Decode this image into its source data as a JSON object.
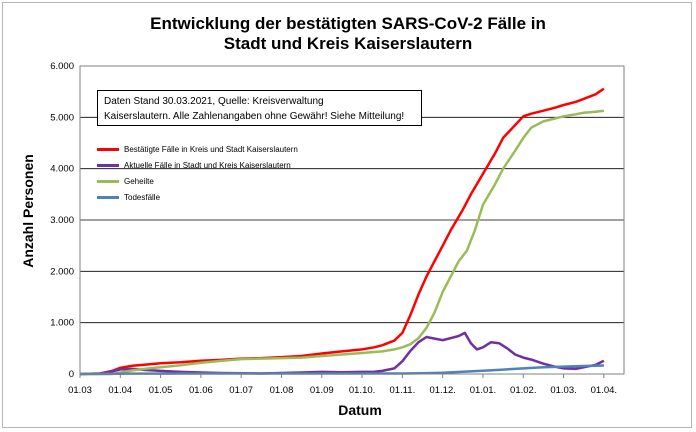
{
  "chart_data": {
    "type": "line",
    "title_line1": "Entwicklung der bestätigten SARS-CoV-2 Fälle in",
    "title_line2": "Stadt und Kreis Kaiserslautern",
    "xlabel": "Datum",
    "ylabel": "Anzahl Personen",
    "ylim": [
      0,
      6000
    ],
    "yticks": [
      0,
      1000,
      2000,
      3000,
      4000,
      5000,
      6000
    ],
    "ytick_labels": [
      "0",
      "1.000",
      "2.000",
      "3.000",
      "4.000",
      "5.000",
      "6.000"
    ],
    "xtick_labels": [
      "01.03",
      "01.04",
      "01.05",
      "01.06",
      "01.07",
      "01.08",
      "01.09",
      "01.10.",
      "01.11.",
      "01.12.",
      "01.01.",
      "01.02.",
      "01.03.",
      "01.04."
    ],
    "x_range_months": [
      0,
      13.5
    ],
    "grid": "horizontal",
    "annotation_line1": "Daten Stand 30.03.2021, Quelle: Kreisverwaltung",
    "annotation_line2": "Kaiserslautern. Alle Zahlenangaben ohne Gewähr! Siehe Mitteilung!",
    "legend_position": "top-left",
    "series": [
      {
        "name": "Bestätigte Fälle in Kreis und Stadt Kaiserslautern",
        "color": "#ff0000",
        "x": [
          0,
          0.5,
          0.8,
          1.0,
          1.3,
          1.6,
          2.0,
          2.5,
          3.0,
          3.5,
          4.0,
          4.5,
          5.0,
          5.5,
          6.0,
          6.5,
          7.0,
          7.3,
          7.5,
          7.8,
          8.0,
          8.2,
          8.4,
          8.6,
          8.8,
          9.0,
          9.2,
          9.5,
          9.7,
          10.0,
          10.3,
          10.5,
          10.8,
          11.0,
          11.2,
          11.5,
          11.8,
          12.0,
          12.3,
          12.5,
          12.8,
          13.0
        ],
        "values": [
          0,
          10,
          60,
          120,
          160,
          180,
          210,
          230,
          260,
          275,
          300,
          310,
          330,
          350,
          400,
          440,
          480,
          520,
          560,
          650,
          800,
          1150,
          1550,
          1900,
          2200,
          2500,
          2800,
          3200,
          3500,
          3900,
          4300,
          4600,
          4850,
          5020,
          5070,
          5130,
          5190,
          5240,
          5300,
          5360,
          5450,
          5560
        ]
      },
      {
        "name": "Aktuelle Fälle in Stadt und Kreis Kaiserslautern",
        "color": "#7030a0",
        "x": [
          0,
          0.5,
          0.8,
          1.0,
          1.3,
          1.6,
          2.0,
          2.5,
          3.0,
          3.5,
          4.0,
          4.5,
          5.0,
          5.5,
          6.0,
          6.5,
          7.0,
          7.3,
          7.5,
          7.8,
          8.0,
          8.2,
          8.4,
          8.6,
          8.8,
          9.0,
          9.2,
          9.4,
          9.55,
          9.7,
          9.85,
          10.0,
          10.2,
          10.4,
          10.6,
          10.8,
          11.0,
          11.2,
          11.5,
          11.8,
          12.0,
          12.3,
          12.5,
          12.8,
          13.0
        ],
        "values": [
          0,
          10,
          50,
          90,
          100,
          80,
          60,
          40,
          30,
          20,
          15,
          10,
          20,
          30,
          40,
          35,
          40,
          45,
          60,
          110,
          250,
          450,
          620,
          720,
          690,
          660,
          700,
          740,
          800,
          600,
          480,
          520,
          620,
          600,
          500,
          380,
          320,
          280,
          200,
          140,
          110,
          100,
          130,
          180,
          260
        ]
      },
      {
        "name": "Geheilte",
        "color": "#9bbb59",
        "x": [
          0,
          0.8,
          1.0,
          1.3,
          1.6,
          2.0,
          2.5,
          3.0,
          3.5,
          4.0,
          4.5,
          5.0,
          5.5,
          6.0,
          6.5,
          7.0,
          7.5,
          7.8,
          8.0,
          8.2,
          8.4,
          8.6,
          8.8,
          9.0,
          9.2,
          9.4,
          9.6,
          9.8,
          10.0,
          10.3,
          10.5,
          10.8,
          11.0,
          11.2,
          11.5,
          11.8,
          12.0,
          12.3,
          12.5,
          12.8,
          13.0
        ],
        "values": [
          0,
          0,
          30,
          70,
          100,
          130,
          170,
          220,
          255,
          290,
          300,
          310,
          320,
          350,
          380,
          410,
          440,
          480,
          520,
          580,
          700,
          900,
          1200,
          1600,
          1900,
          2200,
          2400,
          2800,
          3300,
          3700,
          4000,
          4350,
          4600,
          4800,
          4920,
          4980,
          5020,
          5060,
          5090,
          5110,
          5130
        ]
      },
      {
        "name": "Todesfälle",
        "color": "#4f81bd",
        "x": [
          0,
          1.0,
          2.0,
          3.0,
          4.0,
          5.0,
          6.0,
          7.0,
          8.0,
          8.5,
          9.0,
          9.5,
          10.0,
          10.5,
          11.0,
          11.5,
          12.0,
          12.5,
          13.0
        ],
        "values": [
          0,
          5,
          8,
          9,
          9,
          9,
          9,
          9,
          10,
          15,
          25,
          45,
          65,
          85,
          110,
          130,
          145,
          155,
          165
        ]
      }
    ]
  }
}
